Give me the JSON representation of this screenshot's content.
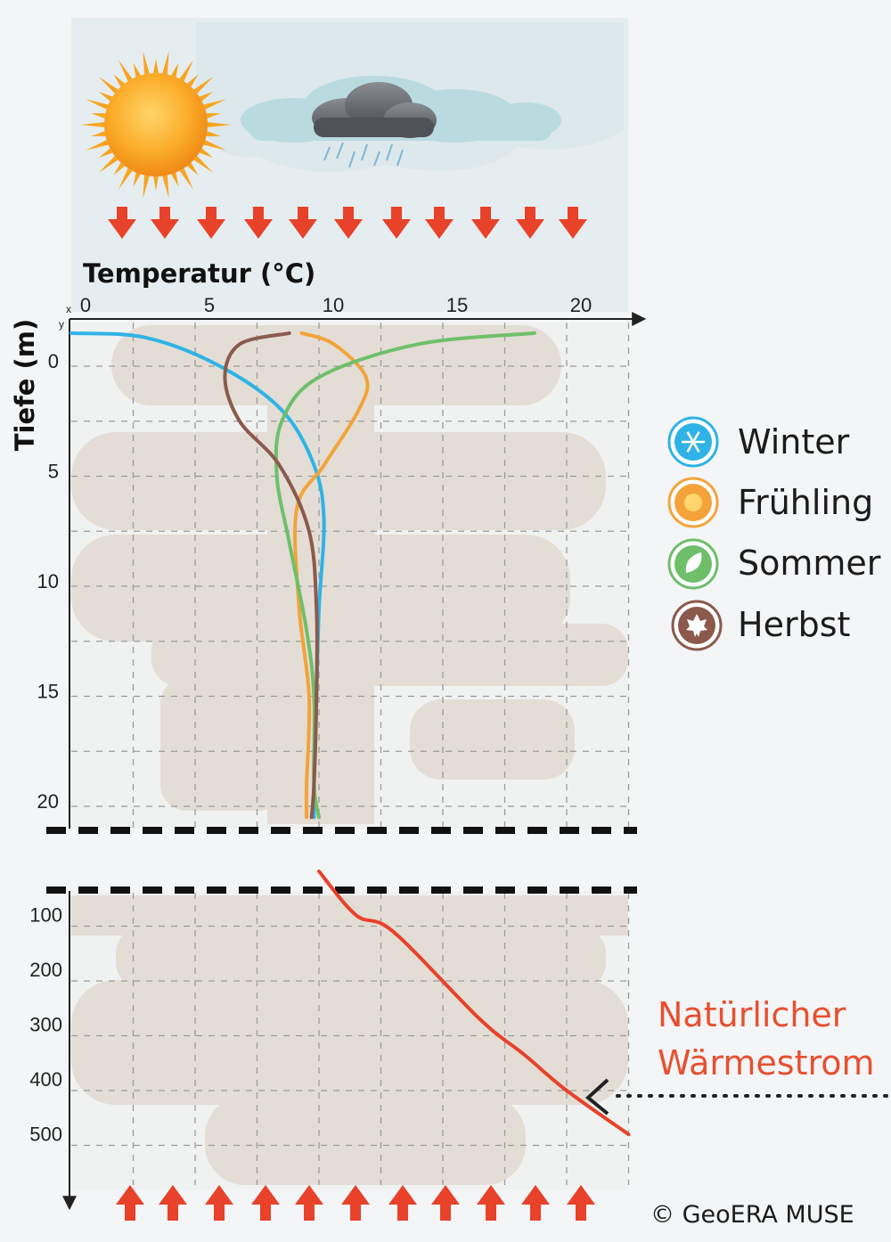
{
  "chart_data": [
    {
      "type": "line",
      "xlabel": "Temperatur (°C)",
      "ylabel": "Tiefe (m)",
      "xlim": [
        0,
        22
      ],
      "ylim": [
        0,
        21
      ],
      "xticks": [
        "0",
        "5",
        "10",
        "15",
        "20"
      ],
      "yticks": [
        "0",
        "5",
        "10",
        "15",
        "20"
      ],
      "x_axis_corner_label": "x",
      "y_axis_corner_label": "y",
      "grid": true,
      "legend_position": "right",
      "series": [
        {
          "name": "Winter",
          "color": "#2fb3e6",
          "points": [
            [
              0,
              -1.5
            ],
            [
              3,
              -1.3
            ],
            [
              6,
              0
            ],
            [
              8.5,
              2
            ],
            [
              9.8,
              4.5
            ],
            [
              10.2,
              7
            ],
            [
              10.0,
              11
            ],
            [
              9.9,
              15
            ],
            [
              9.8,
              19
            ],
            [
              9.8,
              20.5
            ]
          ]
        },
        {
          "name": "Frühling",
          "color": "#f3a33a",
          "points": [
            [
              9.3,
              -1.5
            ],
            [
              10.6,
              -1
            ],
            [
              11.9,
              0.5
            ],
            [
              11.6,
              2
            ],
            [
              10.2,
              4.5
            ],
            [
              9.1,
              6.5
            ],
            [
              9.2,
              11
            ],
            [
              9.6,
              15
            ],
            [
              9.5,
              19
            ],
            [
              9.5,
              20.5
            ]
          ]
        },
        {
          "name": "Sommer",
          "color": "#6fbf6a",
          "points": [
            [
              18.7,
              -1.5
            ],
            [
              14,
              -1
            ],
            [
              10,
              0.5
            ],
            [
              8.5,
              2.5
            ],
            [
              8.3,
              5
            ],
            [
              8.8,
              8
            ],
            [
              9.5,
              12
            ],
            [
              9.8,
              15
            ],
            [
              9.8,
              19
            ],
            [
              10,
              20.5
            ]
          ]
        },
        {
          "name": "Herbst",
          "color": "#8b5a4c",
          "points": [
            [
              8.8,
              -1.5
            ],
            [
              6.8,
              -1
            ],
            [
              6.2,
              0.5
            ],
            [
              6.8,
              2.5
            ],
            [
              8.4,
              4.5
            ],
            [
              9.6,
              7.5
            ],
            [
              9.9,
              11
            ],
            [
              9.9,
              15
            ],
            [
              9.8,
              19
            ],
            [
              9.7,
              20.5
            ]
          ]
        }
      ]
    },
    {
      "type": "line",
      "xlim": [
        0,
        22
      ],
      "ylim": [
        0,
        560
      ],
      "yticks": [
        "100",
        "200",
        "300",
        "400",
        "500"
      ],
      "grid": true,
      "series": [
        {
          "name": "Natürlicher Wärmestrom",
          "color": "#e8422a",
          "points": [
            [
              10,
              0
            ],
            [
              11.5,
              80
            ],
            [
              13,
              110
            ],
            [
              16.5,
              270
            ],
            [
              18.3,
              335
            ],
            [
              20,
              400
            ],
            [
              22.5,
              480
            ]
          ]
        }
      ]
    }
  ],
  "legend": {
    "items": [
      {
        "label": "Winter",
        "icon": "snowflake-icon",
        "color": "#2fb3e6"
      },
      {
        "label": "Frühling",
        "icon": "sun-icon",
        "color": "#f3a33a"
      },
      {
        "label": "Sommer",
        "icon": "leaf-icon",
        "color": "#6fbf6a"
      },
      {
        "label": "Herbst",
        "icon": "maple-leaf-icon",
        "color": "#8b5a4c"
      }
    ]
  },
  "annotation": {
    "line1": "Natürlicher",
    "line2": "Wärmestrom",
    "color": "#e8502f"
  },
  "copyright": "© GeoERA MUSE",
  "colors": {
    "arrow": "#e8422a",
    "ground": "#e3ddd5",
    "sky": "#e3ebee"
  },
  "icons": [
    "sun-icon",
    "rain-cloud-icon",
    "cloud-icon",
    "down-arrow-icon",
    "up-arrow-icon",
    "dotted-arrow-icon"
  ]
}
